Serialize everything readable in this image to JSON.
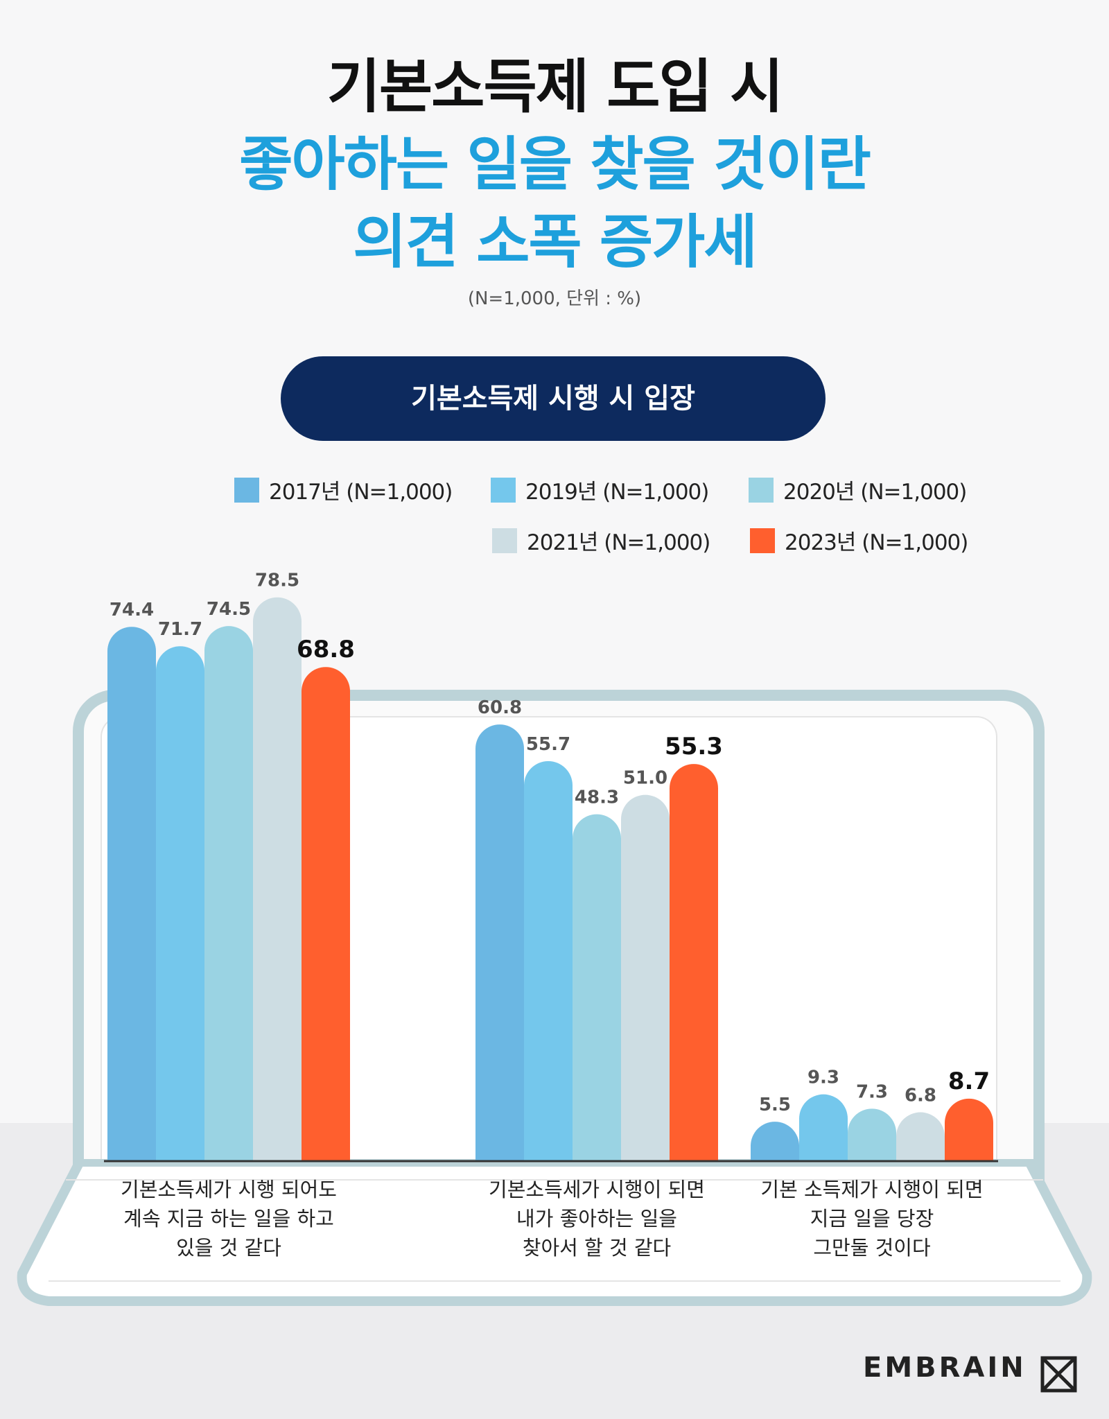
{
  "title_line1": "기본소득제 도입 시",
  "title_line2": "좋아하는 일을 찾을 것이란",
  "title_line3": "의견 소폭 증가세",
  "unit_note": "(N=1,000, 단위 : %)",
  "pill_label": "기본소득제 시행 시 입장",
  "brand": "EMBRAIN",
  "chart_data": {
    "type": "bar",
    "title": "기본소득제 시행 시 입장",
    "categories": [
      [
        "기본소득세가 시행 되어도",
        "계속 지금 하는 일을 하고",
        "있을 것 같다"
      ],
      [
        "기본소득세가 시행이 되면",
        "내가 좋아하는 일을",
        "찾아서 할 것 같다"
      ],
      [
        "기본 소득제가 시행이 되면",
        "지금 일을 당장",
        "그만둘 것이다"
      ]
    ],
    "series": [
      {
        "name": "2017년 (N=1,000)",
        "color": "#6bb7e3",
        "values": [
          74.4,
          60.8,
          5.5
        ]
      },
      {
        "name": "2019년 (N=1,000)",
        "color": "#74c7ec",
        "values": [
          71.7,
          55.7,
          9.3
        ]
      },
      {
        "name": "2020년 (N=1,000)",
        "color": "#9ad3e3",
        "values": [
          74.5,
          48.3,
          7.3
        ]
      },
      {
        "name": "2021년 (N=1,000)",
        "color": "#cddde3",
        "values": [
          78.5,
          51.0,
          6.8
        ]
      },
      {
        "name": "2023년 (N=1,000)",
        "color": "#ff5f2e",
        "values": [
          68.8,
          55.3,
          8.7
        ]
      }
    ],
    "legend_position": "top",
    "grid": false
  }
}
